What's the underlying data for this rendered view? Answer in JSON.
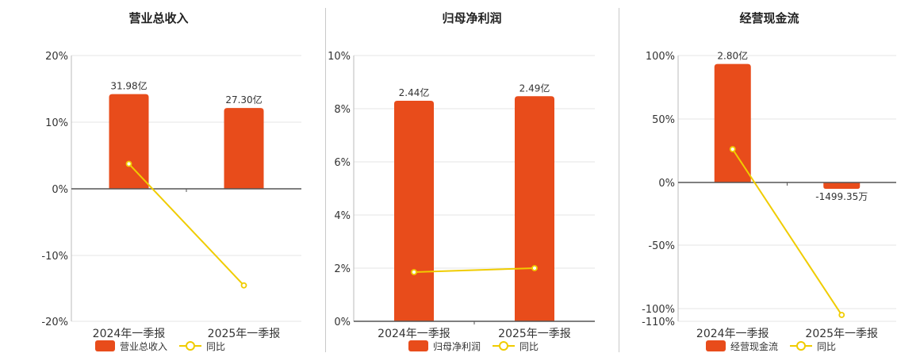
{
  "chart_data": [
    {
      "type": "bar",
      "title": "营业总收入",
      "categories": [
        "2024年一季报",
        "2025年一季报"
      ],
      "series": [
        {
          "name": "营业总收入",
          "values": [
            31.98,
            27.3
          ],
          "labels": [
            "31.98亿",
            "27.30亿"
          ],
          "axis": "bar"
        },
        {
          "name": "同比",
          "values": [
            3.7,
            -14.6
          ],
          "axis": "pct"
        }
      ],
      "y_ticks": [
        "20%",
        "10%",
        "0%",
        "-10%",
        "-20%"
      ],
      "ylim": [
        -20,
        20
      ],
      "bar_scale_max": 45,
      "legend": "bottom-center",
      "grid": true
    },
    {
      "type": "bar",
      "title": "归母净利润",
      "categories": [
        "2024年一季报",
        "2025年一季报"
      ],
      "series": [
        {
          "name": "归母净利润",
          "values": [
            2.44,
            2.49
          ],
          "labels": [
            "2.44亿",
            "2.49亿"
          ],
          "axis": "bar"
        },
        {
          "name": "同比",
          "values": [
            1.85,
            2.0
          ],
          "axis": "pct"
        }
      ],
      "y_ticks": [
        "10%",
        "8%",
        "6%",
        "4%",
        "2%",
        "0%"
      ],
      "ylim": [
        0,
        10
      ],
      "bar_scale_max": 2.94,
      "legend": "bottom-center",
      "grid": true
    },
    {
      "type": "bar",
      "title": "经营现金流",
      "categories": [
        "2024年一季报",
        "2025年一季报"
      ],
      "series": [
        {
          "name": "经营现金流",
          "values": [
            2.8,
            -0.149935
          ],
          "labels": [
            "2.80亿",
            "-1499.35万"
          ],
          "axis": "bar"
        },
        {
          "name": "同比",
          "values": [
            26,
            -105
          ],
          "axis": "pct"
        }
      ],
      "y_ticks": [
        "100%",
        "50%",
        "0%",
        "-50%",
        "-100%",
        "-110%"
      ],
      "ylim": [
        -110,
        100
      ],
      "bar_scale_max": 3.0,
      "legend": "bottom-center",
      "grid": true
    }
  ],
  "colors": {
    "bar": "#e84c1b",
    "line": "#f0cc00",
    "axis": "#555555",
    "grid": "#e6e6e6"
  }
}
